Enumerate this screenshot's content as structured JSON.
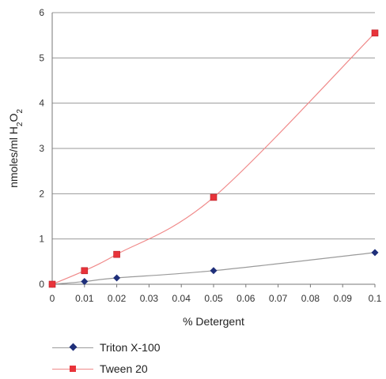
{
  "chart_data": {
    "type": "scatter",
    "title": "",
    "xlabel": "% Detergent",
    "ylabel": "nmoles/ml H2O2",
    "ylabel_parts": {
      "main": "nmoles/ml H",
      "sub1": "2",
      "mid": "O",
      "sub2": "2"
    },
    "xlim": [
      0,
      0.1
    ],
    "ylim": [
      0,
      6
    ],
    "xticks": [
      "0",
      "0.01",
      "0.02",
      "0.03",
      "0.04",
      "0.05",
      "0.06",
      "0.07",
      "0.08",
      "0.09",
      "0.1"
    ],
    "yticks": [
      "0",
      "1",
      "2",
      "3",
      "4",
      "5",
      "6"
    ],
    "grid": "horizontal",
    "legend_position": "bottom",
    "series": [
      {
        "name": "Triton X-100",
        "marker": "diamond",
        "color": "#1f2f7a",
        "line_color": "#9a9a9a",
        "x": [
          0,
          0.01,
          0.02,
          0.05,
          0.1
        ],
        "y": [
          0,
          0.06,
          0.14,
          0.3,
          0.7
        ]
      },
      {
        "name": "Tween 20",
        "marker": "square",
        "color": "#e8333a",
        "line_color": "#f08a8a",
        "x": [
          0,
          0.01,
          0.02,
          0.05,
          0.1
        ],
        "y": [
          0,
          0.3,
          0.66,
          1.92,
          5.55
        ]
      }
    ]
  }
}
